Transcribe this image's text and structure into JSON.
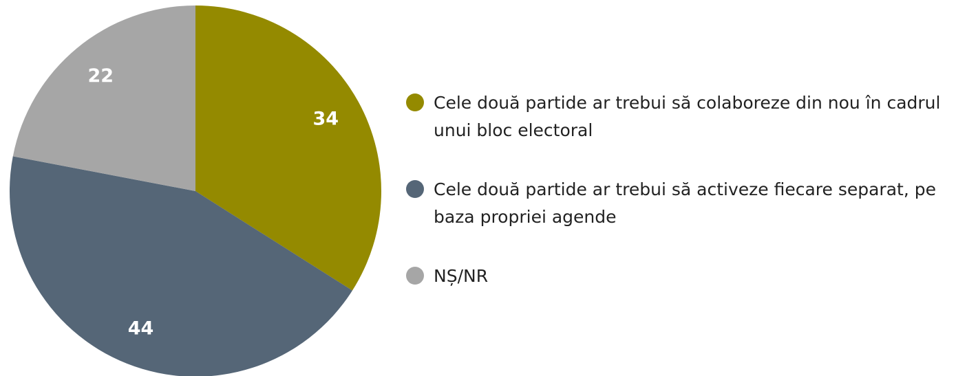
{
  "chart_data": {
    "type": "pie",
    "categories": [
      "Cele două partide ar trebui să colaboreze din nou în cadrul unui bloc electoral",
      "Cele două partide ar trebui să activeze fiecare separat, pe baza propriei agende",
      "NȘ/NR"
    ],
    "values": [
      34,
      44,
      22
    ],
    "colors": [
      "#948a00",
      "#556677",
      "#a6a6a6"
    ],
    "legend": "right"
  }
}
